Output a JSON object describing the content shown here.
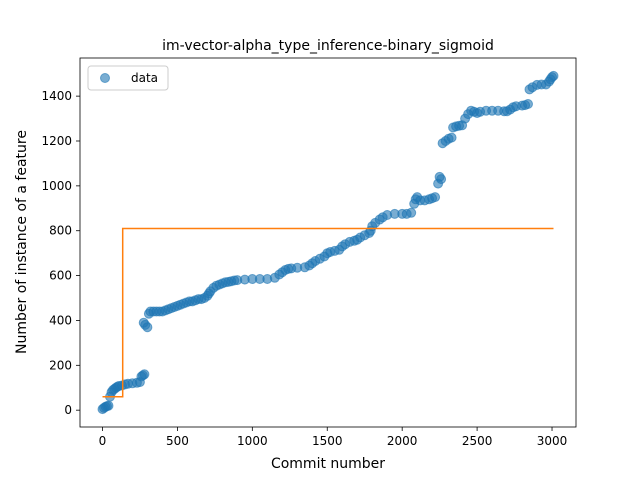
{
  "chart_data": {
    "type": "scatter",
    "title": "im-vector-alpha_type_inference-binary_sigmoid",
    "xlabel": "Commit number",
    "ylabel": "Number of instance of a feature",
    "xlim": [
      -150,
      3160
    ],
    "ylim": [
      -75,
      1570
    ],
    "xticks": [
      0,
      500,
      1000,
      1500,
      2000,
      2500,
      3000
    ],
    "yticks": [
      0,
      200,
      400,
      600,
      800,
      1000,
      1200,
      1400
    ],
    "grid": false,
    "legend": {
      "position": "top-left",
      "entries": [
        "data"
      ]
    },
    "colors": {
      "data": "#1f77b4",
      "step": "#ff7f0e"
    },
    "series": [
      {
        "name": "data",
        "kind": "scatter",
        "points": [
          [
            0,
            5
          ],
          [
            10,
            10
          ],
          [
            20,
            15
          ],
          [
            30,
            18
          ],
          [
            40,
            20
          ],
          [
            50,
            60
          ],
          [
            60,
            80
          ],
          [
            70,
            90
          ],
          [
            80,
            95
          ],
          [
            90,
            100
          ],
          [
            100,
            105
          ],
          [
            110,
            108
          ],
          [
            130,
            110
          ],
          [
            150,
            115
          ],
          [
            170,
            118
          ],
          [
            200,
            120
          ],
          [
            230,
            122
          ],
          [
            250,
            125
          ],
          [
            260,
            150
          ],
          [
            270,
            155
          ],
          [
            280,
            160
          ],
          [
            275,
            390
          ],
          [
            285,
            380
          ],
          [
            300,
            370
          ],
          [
            310,
            430
          ],
          [
            320,
            440
          ],
          [
            340,
            440
          ],
          [
            360,
            440
          ],
          [
            380,
            440
          ],
          [
            400,
            440
          ],
          [
            420,
            445
          ],
          [
            440,
            450
          ],
          [
            460,
            455
          ],
          [
            480,
            460
          ],
          [
            500,
            465
          ],
          [
            520,
            470
          ],
          [
            540,
            475
          ],
          [
            560,
            480
          ],
          [
            580,
            485
          ],
          [
            600,
            485
          ],
          [
            620,
            490
          ],
          [
            640,
            495
          ],
          [
            660,
            495
          ],
          [
            680,
            500
          ],
          [
            700,
            510
          ],
          [
            710,
            520
          ],
          [
            720,
            530
          ],
          [
            740,
            545
          ],
          [
            760,
            555
          ],
          [
            780,
            560
          ],
          [
            800,
            565
          ],
          [
            820,
            570
          ],
          [
            840,
            572
          ],
          [
            860,
            575
          ],
          [
            880,
            578
          ],
          [
            900,
            580
          ],
          [
            950,
            582
          ],
          [
            1000,
            585
          ],
          [
            1050,
            585
          ],
          [
            1100,
            585
          ],
          [
            1150,
            590
          ],
          [
            1180,
            605
          ],
          [
            1200,
            615
          ],
          [
            1220,
            625
          ],
          [
            1240,
            630
          ],
          [
            1260,
            632
          ],
          [
            1300,
            635
          ],
          [
            1350,
            637
          ],
          [
            1380,
            645
          ],
          [
            1400,
            655
          ],
          [
            1420,
            665
          ],
          [
            1450,
            675
          ],
          [
            1480,
            685
          ],
          [
            1500,
            700
          ],
          [
            1520,
            705
          ],
          [
            1550,
            710
          ],
          [
            1580,
            715
          ],
          [
            1600,
            730
          ],
          [
            1620,
            740
          ],
          [
            1650,
            750
          ],
          [
            1680,
            755
          ],
          [
            1700,
            760
          ],
          [
            1720,
            770
          ],
          [
            1750,
            780
          ],
          [
            1780,
            790
          ],
          [
            1790,
            800
          ],
          [
            1800,
            820
          ],
          [
            1820,
            835
          ],
          [
            1850,
            850
          ],
          [
            1870,
            860
          ],
          [
            1900,
            870
          ],
          [
            1950,
            875
          ],
          [
            2000,
            875
          ],
          [
            2030,
            875
          ],
          [
            2060,
            880
          ],
          [
            2080,
            920
          ],
          [
            2090,
            940
          ],
          [
            2100,
            950
          ],
          [
            2120,
            935
          ],
          [
            2150,
            935
          ],
          [
            2180,
            940
          ],
          [
            2200,
            945
          ],
          [
            2220,
            950
          ],
          [
            2240,
            1010
          ],
          [
            2250,
            1040
          ],
          [
            2260,
            1030
          ],
          [
            2270,
            1190
          ],
          [
            2290,
            1200
          ],
          [
            2310,
            1210
          ],
          [
            2330,
            1215
          ],
          [
            2340,
            1260
          ],
          [
            2360,
            1265
          ],
          [
            2380,
            1268
          ],
          [
            2400,
            1270
          ],
          [
            2420,
            1300
          ],
          [
            2440,
            1320
          ],
          [
            2460,
            1335
          ],
          [
            2480,
            1330
          ],
          [
            2500,
            1325
          ],
          [
            2520,
            1330
          ],
          [
            2560,
            1335
          ],
          [
            2600,
            1335
          ],
          [
            2640,
            1335
          ],
          [
            2680,
            1333
          ],
          [
            2700,
            1333
          ],
          [
            2720,
            1340
          ],
          [
            2740,
            1350
          ],
          [
            2760,
            1355
          ],
          [
            2800,
            1358
          ],
          [
            2820,
            1360
          ],
          [
            2840,
            1365
          ],
          [
            2850,
            1430
          ],
          [
            2870,
            1440
          ],
          [
            2900,
            1450
          ],
          [
            2930,
            1452
          ],
          [
            2960,
            1452
          ],
          [
            2980,
            1465
          ],
          [
            2990,
            1475
          ],
          [
            3000,
            1485
          ],
          [
            3010,
            1490
          ]
        ]
      },
      {
        "name": "",
        "kind": "step",
        "points": [
          [
            0,
            60
          ],
          [
            135,
            60
          ],
          [
            135,
            810
          ],
          [
            3010,
            810
          ]
        ]
      }
    ]
  }
}
